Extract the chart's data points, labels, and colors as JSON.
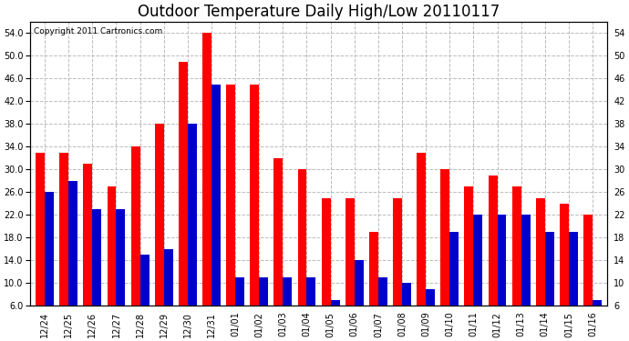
{
  "title": "Outdoor Temperature Daily High/Low 20110117",
  "copyright_text": "Copyright 2011 Cartronics.com",
  "dates": [
    "12/24",
    "12/25",
    "12/26",
    "12/27",
    "12/28",
    "12/29",
    "12/30",
    "12/31",
    "01/01",
    "01/02",
    "01/03",
    "01/04",
    "01/05",
    "01/06",
    "01/07",
    "01/08",
    "01/09",
    "01/10",
    "01/11",
    "01/12",
    "01/13",
    "01/14",
    "01/15",
    "01/16"
  ],
  "highs": [
    33,
    33,
    31,
    27,
    34,
    38,
    49,
    54,
    45,
    45,
    32,
    30,
    25,
    25,
    19,
    25,
    33,
    30,
    27,
    29,
    27,
    25,
    24,
    22
  ],
  "lows": [
    26,
    28,
    23,
    23,
    15,
    16,
    38,
    45,
    11,
    11,
    11,
    11,
    7,
    14,
    11,
    10,
    9,
    19,
    22,
    22,
    22,
    19,
    19,
    7
  ],
  "high_color": "#ff0000",
  "low_color": "#0000cc",
  "bg_color": "#ffffff",
  "grid_color": "#bbbbbb",
  "ymin": 6.0,
  "ymax": 56.0,
  "yticks_left": [
    6.0,
    10.0,
    14.0,
    18.0,
    22.0,
    26.0,
    30.0,
    34.0,
    38.0,
    42.0,
    46.0,
    50.0,
    54.0
  ],
  "yticks_right": [
    6.0,
    10.0,
    14.0,
    18.0,
    22.0,
    26.0,
    30.0,
    34.0,
    38.0,
    42.0,
    46.0,
    50.0,
    54.0
  ],
  "ytick_labels_left": [
    "6.0",
    "10.0",
    "14.0",
    "18.0",
    "22.0",
    "26.0",
    "30.0",
    "34.0",
    "38.0",
    "42.0",
    "46.0",
    "50.0",
    "54.0"
  ],
  "ytick_labels_right": [
    "6",
    "10",
    "14",
    "18",
    "22",
    "26",
    "30",
    "34",
    "38",
    "42",
    "46",
    "50",
    "54"
  ],
  "title_fontsize": 12,
  "copyright_fontsize": 6.5,
  "tick_fontsize": 7,
  "bar_width": 0.38
}
